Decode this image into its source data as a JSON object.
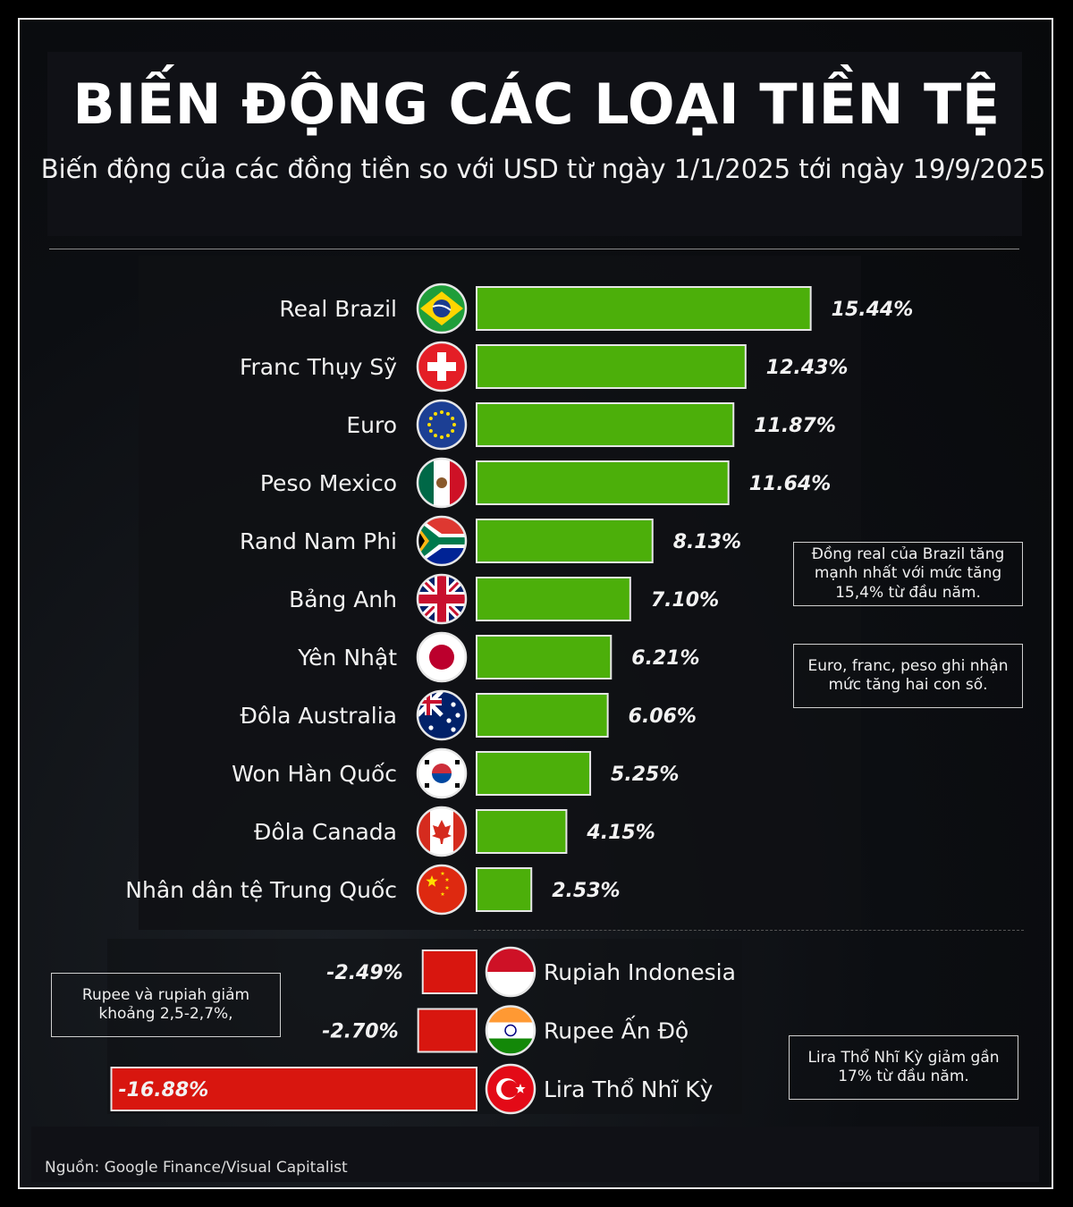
{
  "title": "BIẾN ĐỘNG CÁC LOẠI TIỀN TỆ",
  "subtitle": "Biến động của các đồng tiền so với USD từ ngày 1/1/2025 tới ngày 19/9/2025",
  "source": "Nguồn: Google Finance/Visual Capitalist",
  "notes": {
    "brazil": "Đồng real của Brazil tăng mạnh nhất với mức tăng 15,4% từ đầu năm.",
    "euro": "Euro, franc, peso ghi nhận mức tăng hai con số.",
    "rupee": "Rupee và rupiah giảm khoảng 2,5-2,7%,",
    "lira": "Lira Thổ Nhĩ Kỳ giảm gần 17% từ đầu năm."
  },
  "colors": {
    "positive": "#4caf0a",
    "negative": "#d8160f",
    "bar_border": "#e6e6e6"
  },
  "chart_data": {
    "type": "bar",
    "orientation": "horizontal",
    "title": "BIẾN ĐỘNG CÁC LOẠI TIỀN TỆ",
    "unit": "%",
    "categories": [
      "Real Brazil",
      "Franc Thụy Sỹ",
      "Euro",
      "Peso Mexico",
      "Rand Nam Phi",
      "Bảng Anh",
      "Yên Nhật",
      "Đôla Australia",
      "Won Hàn Quốc",
      "Đôla Canada",
      "Nhân dân tệ Trung Quốc",
      "Rupiah Indonesia",
      "Rupee Ấn Độ",
      "Lira Thổ Nhĩ Kỳ"
    ],
    "values": [
      15.44,
      12.43,
      11.87,
      11.64,
      8.13,
      7.1,
      6.21,
      6.06,
      5.25,
      4.15,
      2.53,
      -2.49,
      -2.7,
      -16.88
    ],
    "value_labels": [
      "15.44%",
      "12.43%",
      "11.87%",
      "11.64%",
      "8.13%",
      "7.10%",
      "6.21%",
      "6.06%",
      "5.25%",
      "4.15%",
      "2.53%",
      "-2.49%",
      "-2.70%",
      "-16.88%"
    ],
    "flag_icons": [
      "flag-brazil-icon",
      "flag-switzerland-icon",
      "flag-eu-icon",
      "flag-mexico-icon",
      "flag-south-africa-icon",
      "flag-uk-icon",
      "flag-japan-icon",
      "flag-australia-icon",
      "flag-korea-icon",
      "flag-canada-icon",
      "flag-china-icon",
      "flag-indonesia-icon",
      "flag-india-icon",
      "flag-turkey-icon"
    ]
  }
}
